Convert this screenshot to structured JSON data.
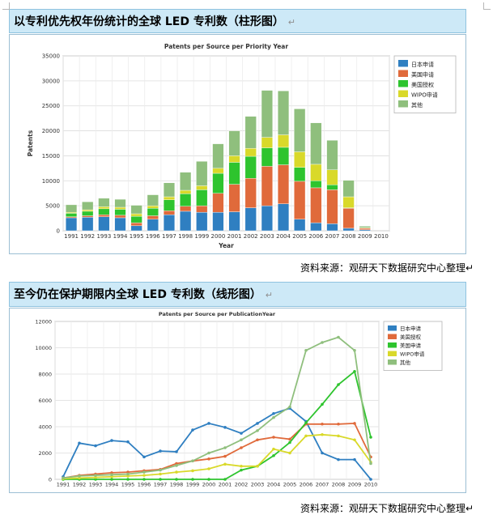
{
  "section1": {
    "title": "以专利优先权年份统计的全球 LED 专利数（柱形图）",
    "mark": "↵"
  },
  "section2": {
    "title": "至今仍在保护期限内全球 LED 专利数（线形图）",
    "mark": "↵"
  },
  "source1": "资料来源：观研天下数据研究中心整理↵",
  "source2": "资料来源：观研天下数据研究中心整理↵",
  "chart_data": [
    {
      "type": "bar",
      "stacked": true,
      "title": "Patents per Source per Priority Year",
      "xlabel": "Year",
      "ylabel": "Patents",
      "ylim": [
        0,
        35000
      ],
      "yticks": [
        0,
        5000,
        10000,
        15000,
        20000,
        25000,
        30000,
        35000
      ],
      "legend_position": "top-right",
      "grid": true,
      "categories": [
        "1991",
        "1992",
        "1993",
        "1994",
        "1995",
        "1996",
        "1997",
        "1998",
        "1999",
        "2000",
        "2001",
        "2002",
        "2003",
        "2004",
        "2005",
        "2006",
        "2007",
        "2008",
        "2009",
        "2010"
      ],
      "series": [
        {
          "name": "日本申请",
          "color": "#2f7fc1",
          "values": [
            2600,
            2700,
            2800,
            2600,
            1000,
            2300,
            3200,
            3900,
            3700,
            3700,
            3800,
            4600,
            5000,
            5400,
            2300,
            1600,
            1400,
            500,
            200,
            0
          ]
        },
        {
          "name": "美国申请",
          "color": "#e06a3b",
          "values": [
            200,
            300,
            400,
            500,
            600,
            700,
            800,
            1000,
            1300,
            3800,
            5500,
            5900,
            7900,
            7800,
            7600,
            7000,
            6800,
            4000,
            300,
            0
          ]
        },
        {
          "name": "美国授权",
          "color": "#2ec42e",
          "values": [
            700,
            900,
            1200,
            1200,
            1300,
            1500,
            2200,
            2500,
            3200,
            4000,
            4400,
            4400,
            3700,
            3500,
            2800,
            1400,
            1000,
            100,
            0,
            0
          ]
        },
        {
          "name": "WIPO申请",
          "color": "#d9d92a",
          "values": [
            200,
            300,
            400,
            400,
            500,
            500,
            600,
            700,
            800,
            1000,
            1300,
            1600,
            2100,
            2500,
            3100,
            3300,
            3000,
            2200,
            100,
            0
          ]
        },
        {
          "name": "其他",
          "color": "#8fbf7d",
          "values": [
            1500,
            1600,
            1700,
            1600,
            1700,
            2200,
            2800,
            3600,
            4900,
            4900,
            5000,
            6400,
            9400,
            8800,
            8600,
            8300,
            5900,
            3300,
            300,
            0
          ]
        }
      ]
    },
    {
      "type": "line",
      "title": "Patents per Source per PublicationYear",
      "xlabel": "Year",
      "ylabel": "",
      "ylim": [
        0,
        12000
      ],
      "yticks": [
        0,
        2000,
        4000,
        6000,
        8000,
        10000,
        12000
      ],
      "legend_position": "top-right",
      "grid": true,
      "categories": [
        "1991",
        "1992",
        "1993",
        "1994",
        "1995",
        "1996",
        "1997",
        "1998",
        "1999",
        "2000",
        "2001",
        "2002",
        "2003",
        "2004",
        "2005",
        "2006",
        "2007",
        "2008",
        "2009",
        "2010"
      ],
      "series": [
        {
          "name": "日本申请",
          "color": "#2f7fc1",
          "values": [
            200,
            2750,
            2550,
            2950,
            2850,
            1700,
            2150,
            2100,
            3750,
            4250,
            3950,
            3500,
            4250,
            5000,
            5400,
            4400,
            2000,
            1500,
            1500,
            0
          ]
        },
        {
          "name": "美国授权",
          "color": "#e06a3b",
          "values": [
            100,
            300,
            400,
            500,
            550,
            650,
            750,
            1200,
            1400,
            1550,
            1750,
            2400,
            3000,
            3200,
            3050,
            4200,
            4200,
            4200,
            4250,
            1700
          ]
        },
        {
          "name": "美国申请",
          "color": "#2ec42e",
          "values": [
            0,
            0,
            0,
            0,
            0,
            0,
            0,
            0,
            0,
            0,
            0,
            700,
            1000,
            1800,
            2800,
            4300,
            5700,
            7200,
            8200,
            3200
          ]
        },
        {
          "name": "WIPO申请",
          "color": "#d9d92a",
          "values": [
            50,
            100,
            150,
            200,
            250,
            300,
            400,
            550,
            650,
            800,
            1150,
            1000,
            1000,
            2300,
            2000,
            3300,
            3400,
            3300,
            3000,
            1300
          ]
        },
        {
          "name": "其他",
          "color": "#8fbf7d",
          "values": [
            100,
            250,
            300,
            350,
            400,
            550,
            700,
            1050,
            1400,
            2000,
            2400,
            3000,
            3700,
            4700,
            5500,
            9800,
            10400,
            10800,
            9800,
            1200
          ]
        }
      ]
    }
  ]
}
